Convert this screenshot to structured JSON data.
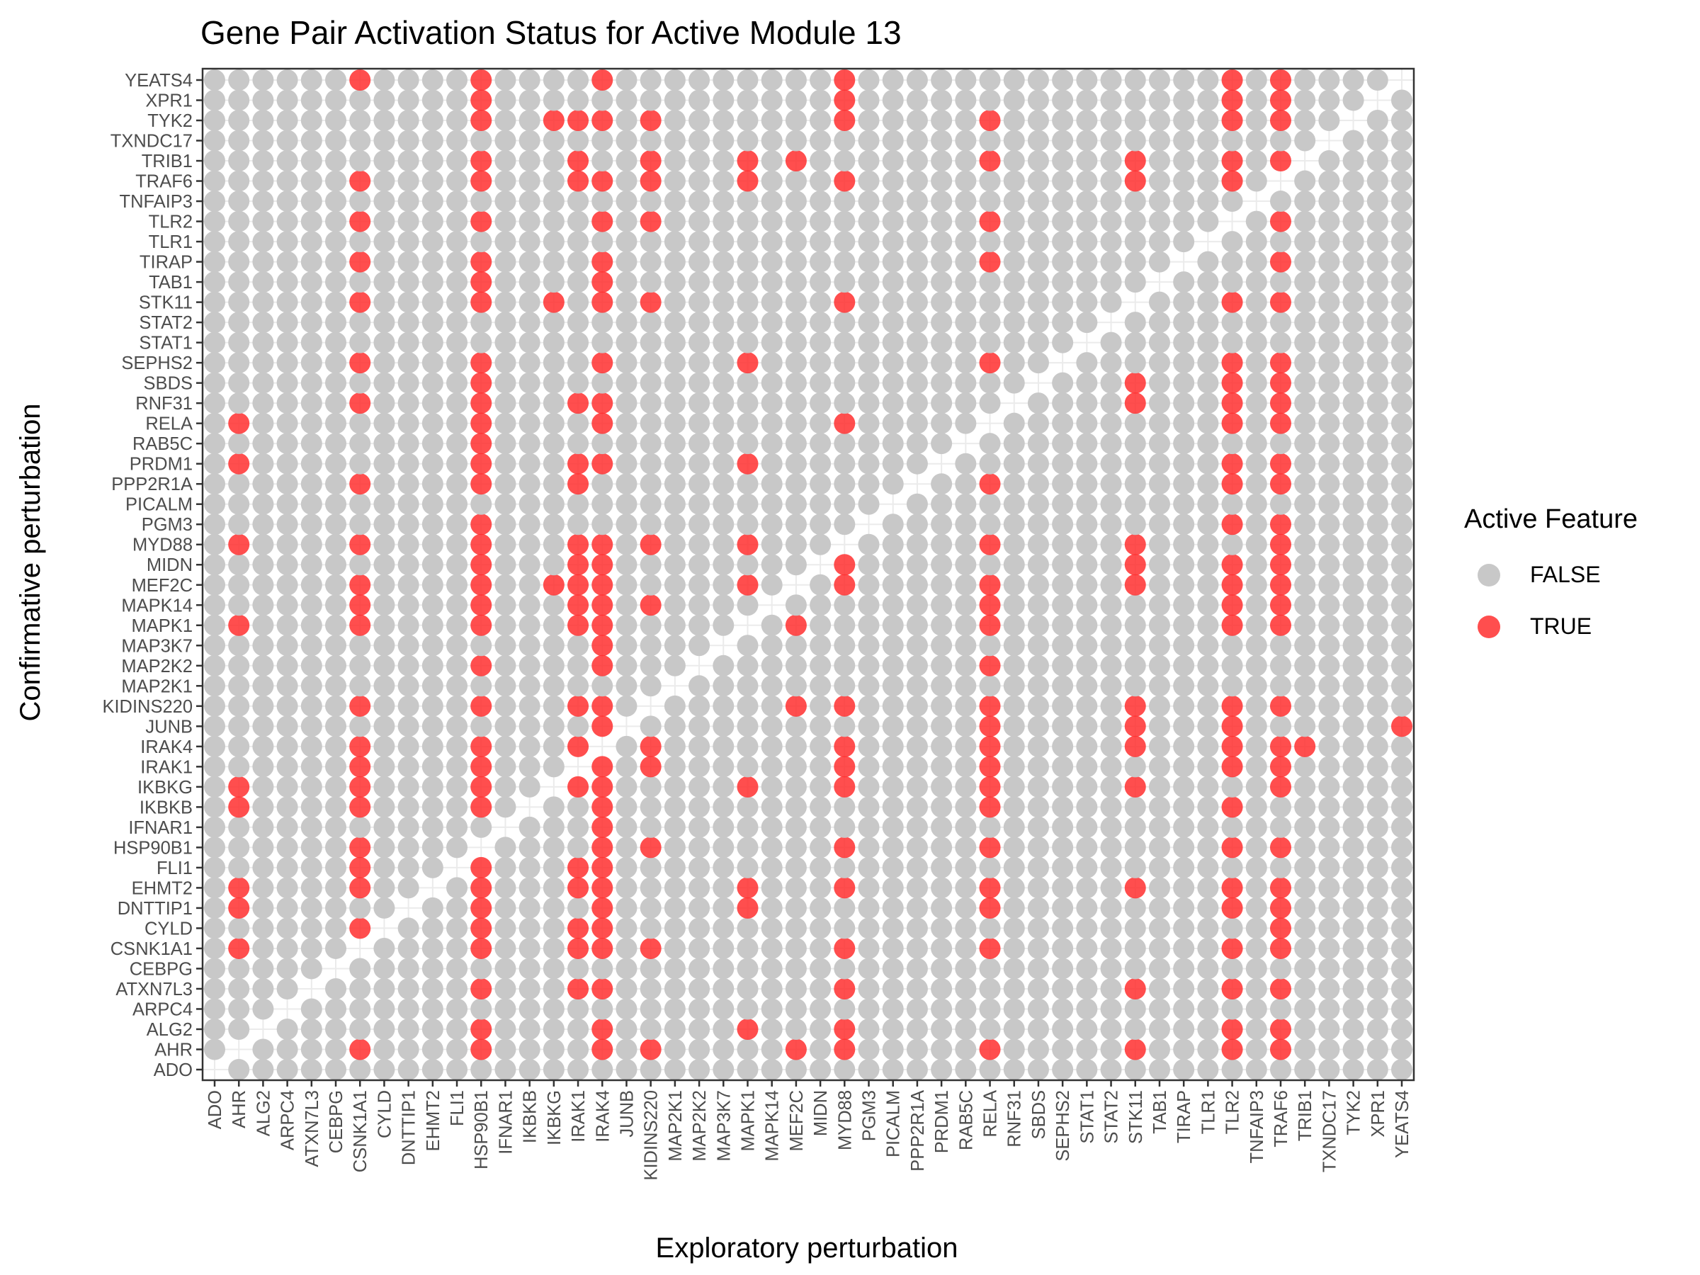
{
  "chart_data": {
    "type": "scatter",
    "title": "Gene Pair Activation Status for Active Module 13",
    "xlabel": "Exploratory perturbation",
    "ylabel": "Confirmative perturbation",
    "legend": {
      "title": "Active Feature",
      "placement": "right",
      "entries": [
        {
          "label": "FALSE",
          "color": "#c8c8c8"
        },
        {
          "label": "TRUE",
          "color": "#ff2f2f"
        }
      ]
    },
    "categories": [
      "ADO",
      "AHR",
      "ALG2",
      "ARPC4",
      "ATXN7L3",
      "CEBPG",
      "CSNK1A1",
      "CYLD",
      "DNTTIP1",
      "EHMT2",
      "FLI1",
      "HSP90B1",
      "IFNAR1",
      "IKBKB",
      "IKBKG",
      "IRAK1",
      "IRAK4",
      "JUNB",
      "KIDINS220",
      "MAP2K1",
      "MAP2K2",
      "MAP3K7",
      "MAPK1",
      "MAPK14",
      "MEF2C",
      "MIDN",
      "MYD88",
      "PGM3",
      "PICALM",
      "PPP2R1A",
      "PRDM1",
      "RAB5C",
      "RELA",
      "RNF31",
      "SBDS",
      "SEPHS2",
      "STAT1",
      "STAT2",
      "STK11",
      "TAB1",
      "TIRAP",
      "TLR1",
      "TLR2",
      "TNFAIP3",
      "TRAF6",
      "TRIB1",
      "TXNDC17",
      "TYK2",
      "XPR1",
      "YEATS4"
    ],
    "true_pairs": {
      "YEATS4": [
        "CSNK1A1",
        "HSP90B1",
        "IRAK4",
        "MYD88",
        "TLR2",
        "TRAF6"
      ],
      "XPR1": [
        "HSP90B1",
        "MYD88",
        "TLR2",
        "TRAF6"
      ],
      "TYK2": [
        "HSP90B1",
        "IKBKG",
        "IRAK1",
        "IRAK4",
        "KIDINS220",
        "MYD88",
        "RELA",
        "TLR2",
        "TRAF6"
      ],
      "TXNDC17": [],
      "TRIB1": [
        "HSP90B1",
        "IRAK1",
        "KIDINS220",
        "MAPK1",
        "MEF2C",
        "RELA",
        "STK11",
        "TLR2",
        "TRAF6"
      ],
      "TRAF6": [
        "CSNK1A1",
        "HSP90B1",
        "IRAK1",
        "IRAK4",
        "KIDINS220",
        "MAPK1",
        "MYD88",
        "STK11",
        "TLR2"
      ],
      "TNFAIP3": [],
      "TLR2": [
        "CSNK1A1",
        "HSP90B1",
        "IRAK4",
        "KIDINS220",
        "RELA",
        "TRAF6"
      ],
      "TLR1": [],
      "TIRAP": [
        "CSNK1A1",
        "HSP90B1",
        "IRAK4",
        "RELA",
        "TRAF6"
      ],
      "TAB1": [
        "HSP90B1",
        "IRAK4"
      ],
      "STK11": [
        "CSNK1A1",
        "HSP90B1",
        "IKBKG",
        "IRAK4",
        "KIDINS220",
        "MYD88",
        "TLR2",
        "TRAF6"
      ],
      "STAT2": [],
      "STAT1": [],
      "SEPHS2": [
        "CSNK1A1",
        "HSP90B1",
        "IRAK4",
        "MAPK1",
        "RELA",
        "TLR2",
        "TRAF6"
      ],
      "SBDS": [
        "HSP90B1",
        "STK11",
        "TLR2",
        "TRAF6"
      ],
      "RNF31": [
        "CSNK1A1",
        "HSP90B1",
        "IRAK1",
        "IRAK4",
        "STK11",
        "TLR2",
        "TRAF6"
      ],
      "RELA": [
        "AHR",
        "HSP90B1",
        "IRAK4",
        "MYD88",
        "TLR2",
        "TRAF6"
      ],
      "RAB5C": [
        "HSP90B1"
      ],
      "PRDM1": [
        "AHR",
        "HSP90B1",
        "IRAK1",
        "IRAK4",
        "MAPK1",
        "TLR2",
        "TRAF6"
      ],
      "PPP2R1A": [
        "CSNK1A1",
        "HSP90B1",
        "IRAK1",
        "RELA",
        "TLR2",
        "TRAF6"
      ],
      "PICALM": [],
      "PGM3": [
        "HSP90B1",
        "TLR2",
        "TRAF6"
      ],
      "MYD88": [
        "AHR",
        "CSNK1A1",
        "HSP90B1",
        "IRAK1",
        "IRAK4",
        "KIDINS220",
        "MAPK1",
        "RELA",
        "STK11",
        "TRAF6"
      ],
      "MIDN": [
        "HSP90B1",
        "IRAK1",
        "IRAK4",
        "MYD88",
        "STK11",
        "TLR2",
        "TRAF6"
      ],
      "MEF2C": [
        "CSNK1A1",
        "HSP90B1",
        "IKBKG",
        "IRAK1",
        "IRAK4",
        "MAPK1",
        "MYD88",
        "RELA",
        "STK11",
        "TLR2",
        "TRAF6"
      ],
      "MAPK14": [
        "CSNK1A1",
        "HSP90B1",
        "IRAK1",
        "IRAK4",
        "KIDINS220",
        "RELA",
        "TLR2",
        "TRAF6"
      ],
      "MAPK1": [
        "AHR",
        "CSNK1A1",
        "HSP90B1",
        "IRAK1",
        "IRAK4",
        "MEF2C",
        "RELA",
        "TLR2",
        "TRAF6"
      ],
      "MAP3K7": [
        "IRAK4"
      ],
      "MAP2K2": [
        "HSP90B1",
        "IRAK4",
        "RELA"
      ],
      "MAP2K1": [],
      "KIDINS220": [
        "CSNK1A1",
        "HSP90B1",
        "IRAK1",
        "IRAK4",
        "MEF2C",
        "MYD88",
        "RELA",
        "STK11",
        "TLR2",
        "TRAF6"
      ],
      "JUNB": [
        "IRAK4",
        "RELA",
        "STK11",
        "TLR2",
        "YEATS4"
      ],
      "IRAK4": [
        "CSNK1A1",
        "HSP90B1",
        "IRAK1",
        "KIDINS220",
        "MYD88",
        "RELA",
        "STK11",
        "TLR2",
        "TRAF6",
        "TRIB1"
      ],
      "IRAK1": [
        "CSNK1A1",
        "HSP90B1",
        "IRAK4",
        "KIDINS220",
        "MYD88",
        "RELA",
        "TLR2",
        "TRAF6"
      ],
      "IKBKG": [
        "AHR",
        "CSNK1A1",
        "HSP90B1",
        "IRAK1",
        "IRAK4",
        "MAPK1",
        "MYD88",
        "RELA",
        "STK11",
        "TRAF6"
      ],
      "IKBKB": [
        "AHR",
        "CSNK1A1",
        "HSP90B1",
        "IRAK4",
        "RELA",
        "TLR2"
      ],
      "IFNAR1": [
        "IRAK4"
      ],
      "HSP90B1": [
        "CSNK1A1",
        "IRAK4",
        "KIDINS220",
        "MYD88",
        "RELA",
        "TLR2",
        "TRAF6"
      ],
      "FLI1": [
        "CSNK1A1",
        "HSP90B1",
        "IRAK1",
        "IRAK4"
      ],
      "EHMT2": [
        "AHR",
        "CSNK1A1",
        "HSP90B1",
        "IRAK1",
        "IRAK4",
        "MAPK1",
        "MYD88",
        "RELA",
        "STK11",
        "TLR2",
        "TRAF6"
      ],
      "DNTTIP1": [
        "AHR",
        "HSP90B1",
        "IRAK4",
        "MAPK1",
        "RELA",
        "TLR2",
        "TRAF6"
      ],
      "CYLD": [
        "CSNK1A1",
        "HSP90B1",
        "IRAK1",
        "IRAK4",
        "TRAF6"
      ],
      "CSNK1A1": [
        "AHR",
        "HSP90B1",
        "IRAK1",
        "IRAK4",
        "KIDINS220",
        "MYD88",
        "RELA",
        "TLR2",
        "TRAF6"
      ],
      "CEBPG": [],
      "ATXN7L3": [
        "HSP90B1",
        "IRAK1",
        "IRAK4",
        "MYD88",
        "STK11",
        "TLR2",
        "TRAF6"
      ],
      "ARPC4": [],
      "ALG2": [
        "HSP90B1",
        "IRAK4",
        "MAPK1",
        "MYD88",
        "TLR2",
        "TRAF6"
      ],
      "AHR": [
        "CSNK1A1",
        "HSP90B1",
        "IRAK4",
        "KIDINS220",
        "MEF2C",
        "MYD88",
        "RELA",
        "STK11",
        "TLR2",
        "TRAF6"
      ],
      "ADO": []
    },
    "grid": true,
    "colors": {
      "false": "#c8c8c8",
      "true": "#ff2f2f"
    }
  }
}
